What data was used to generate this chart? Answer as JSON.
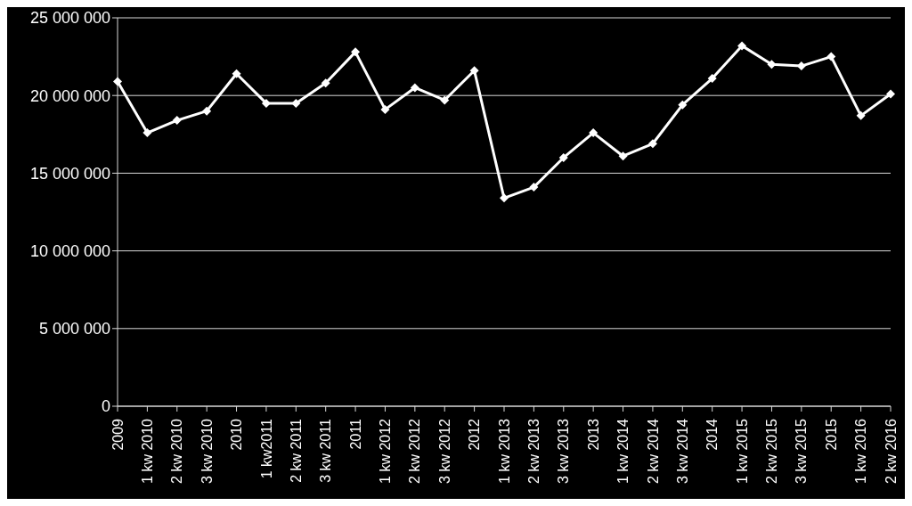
{
  "chart_data": {
    "type": "line",
    "categories": [
      "2009",
      "1 kw 2010",
      "2 kw 2010",
      "3 kw 2010",
      "2010",
      "1 kw2011",
      "2 kw 2011",
      "3 kw 2011",
      "2011",
      "1 kw 2012",
      "2 kw 2012",
      "3 kw 2012",
      "2012",
      "1 kw 2013",
      "2 kw 2013",
      "3 kw 2013",
      "2013",
      "1 kw 2014",
      "2 kw 2014",
      "3 kw 2014",
      "2014",
      "1 kw 2015",
      "2 kw 2015",
      "3 kw 2015",
      "2015",
      "1 kw 2016",
      "2 kw 2016"
    ],
    "series": [
      {
        "color": "#ffffff",
        "values": [
          20900000,
          17600000,
          18400000,
          19000000,
          21400000,
          19500000,
          19500000,
          20800000,
          22800000,
          19100000,
          20500000,
          19700000,
          21600000,
          13400000,
          14100000,
          16000000,
          17600000,
          16100000,
          16900000,
          19400000,
          21100000,
          23200000,
          22000000,
          21900000,
          22500000,
          18700000,
          20100000
        ]
      }
    ],
    "ylim": [
      0,
      25000000
    ],
    "yticks": [
      {
        "value": 0,
        "label": "0"
      },
      {
        "value": 5000000,
        "label": "5 000 000"
      },
      {
        "value": 10000000,
        "label": "10 000 000"
      },
      {
        "value": 15000000,
        "label": "15 000 000"
      },
      {
        "value": 20000000,
        "label": "20 000 000"
      },
      {
        "value": 25000000,
        "label": "25 000 000"
      }
    ],
    "grid": "y",
    "marker": "diamond",
    "line_style": "solid",
    "legend": false
  }
}
